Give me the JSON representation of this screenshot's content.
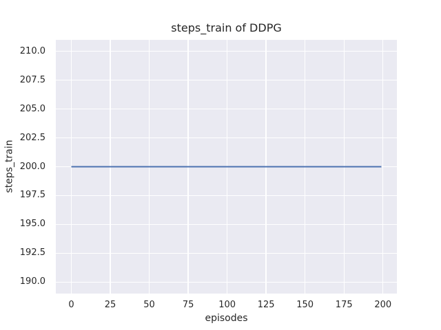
{
  "figure": {
    "background": "#ffffff"
  },
  "chart_data": {
    "type": "line",
    "title": "steps_train of DDPG",
    "xlabel": "episodes",
    "ylabel": "steps_train",
    "xlim": [
      -9.95,
      208.95
    ],
    "ylim": [
      189.0,
      211.0
    ],
    "x_ticks": [
      0,
      25,
      50,
      75,
      100,
      125,
      150,
      175,
      200
    ],
    "x_tick_labels": [
      "0",
      "25",
      "50",
      "75",
      "100",
      "125",
      "150",
      "175",
      "200"
    ],
    "y_ticks": [
      190.0,
      192.5,
      195.0,
      197.5,
      200.0,
      202.5,
      205.0,
      207.5,
      210.0
    ],
    "y_tick_labels": [
      "190.0",
      "192.5",
      "195.0",
      "197.5",
      "200.0",
      "202.5",
      "205.0",
      "207.5",
      "210.0"
    ],
    "grid": true,
    "legend_position": "none",
    "plot_background": "#eaeaf2",
    "grid_color": "#ffffff",
    "text_color": "#262626",
    "series": [
      {
        "name": "steps_train",
        "color": "#4c72b0",
        "linewidth": 2,
        "x": [
          0,
          199
        ],
        "y": [
          200,
          200
        ]
      }
    ]
  }
}
